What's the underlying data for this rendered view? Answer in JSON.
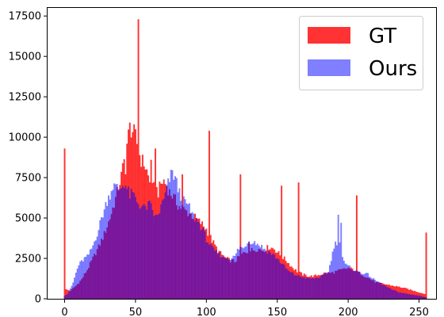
{
  "chart_data": {
    "type": "bar",
    "title": "",
    "xlabel": "",
    "ylabel": "",
    "xlim": [
      -12,
      262
    ],
    "ylim": [
      0,
      18000
    ],
    "x_ticks": [
      0,
      50,
      100,
      150,
      200,
      250
    ],
    "y_ticks": [
      0,
      2500,
      5000,
      7500,
      10000,
      12500,
      15000,
      17500
    ],
    "x_tick_labels": [
      "0",
      "50",
      "100",
      "150",
      "200",
      "250"
    ],
    "y_tick_labels": [
      "0",
      "2500",
      "5000",
      "7500",
      "10000",
      "12500",
      "15000",
      "17500"
    ],
    "grid": false,
    "legend_position": "top-right",
    "series": [
      {
        "name": "GT",
        "color": "#ff0000",
        "opacity": 0.8,
        "knots": [
          [
            0,
            600
          ],
          [
            4,
            500
          ],
          [
            8,
            800
          ],
          [
            12,
            1200
          ],
          [
            16,
            1800
          ],
          [
            20,
            2500
          ],
          [
            24,
            3200
          ],
          [
            28,
            4000
          ],
          [
            32,
            5000
          ],
          [
            36,
            6200
          ],
          [
            40,
            7600
          ],
          [
            42,
            8500
          ],
          [
            44,
            9600
          ],
          [
            46,
            10600
          ],
          [
            48,
            10400
          ],
          [
            50,
            10000
          ],
          [
            52,
            9200
          ],
          [
            54,
            8600
          ],
          [
            56,
            8400
          ],
          [
            58,
            7900
          ],
          [
            60,
            7200
          ],
          [
            62,
            6800
          ],
          [
            64,
            6900
          ],
          [
            66,
            6600
          ],
          [
            68,
            7100
          ],
          [
            70,
            7300
          ],
          [
            72,
            7000
          ],
          [
            74,
            6600
          ],
          [
            76,
            6400
          ],
          [
            78,
            6100
          ],
          [
            80,
            5800
          ],
          [
            84,
            5500
          ],
          [
            88,
            5300
          ],
          [
            92,
            5000
          ],
          [
            96,
            4700
          ],
          [
            100,
            4300
          ],
          [
            104,
            3600
          ],
          [
            108,
            3000
          ],
          [
            112,
            2600
          ],
          [
            116,
            2400
          ],
          [
            120,
            2300
          ],
          [
            124,
            2700
          ],
          [
            128,
            2900
          ],
          [
            132,
            3000
          ],
          [
            136,
            3100
          ],
          [
            140,
            3000
          ],
          [
            144,
            3200
          ],
          [
            148,
            3100
          ],
          [
            152,
            2700
          ],
          [
            156,
            2400
          ],
          [
            160,
            2000
          ],
          [
            164,
            1700
          ],
          [
            168,
            1500
          ],
          [
            172,
            1400
          ],
          [
            176,
            1400
          ],
          [
            180,
            1500
          ],
          [
            184,
            1600
          ],
          [
            188,
            1600
          ],
          [
            192,
            1700
          ],
          [
            196,
            1800
          ],
          [
            200,
            1900
          ],
          [
            204,
            1800
          ],
          [
            208,
            1600
          ],
          [
            212,
            1400
          ],
          [
            216,
            1200
          ],
          [
            220,
            1000
          ],
          [
            226,
            900
          ],
          [
            232,
            800
          ],
          [
            238,
            700
          ],
          [
            244,
            550
          ],
          [
            250,
            400
          ],
          [
            254,
            300
          ]
        ],
        "spikes": [
          [
            0,
            9300
          ],
          [
            43,
            7700
          ],
          [
            52,
            17300
          ],
          [
            61,
            8600
          ],
          [
            64,
            9300
          ],
          [
            83,
            7700
          ],
          [
            102,
            10400
          ],
          [
            124,
            7700
          ],
          [
            130,
            3500
          ],
          [
            153,
            7000
          ],
          [
            165,
            7200
          ],
          [
            206,
            6400
          ],
          [
            255,
            4100
          ]
        ],
        "dips": [
          [
            43,
            0.55
          ],
          [
            64,
            0.55
          ],
          [
            83,
            0.45
          ],
          [
            124,
            0.38
          ],
          [
            165,
            0.3
          ],
          [
            206,
            0.45
          ],
          [
            255,
            0.5
          ]
        ]
      },
      {
        "name": "Ours",
        "color": "#0000ff",
        "opacity": 0.5,
        "knots": [
          [
            0,
            200
          ],
          [
            2,
            300
          ],
          [
            4,
            600
          ],
          [
            6,
            1000
          ],
          [
            8,
            1600
          ],
          [
            10,
            2100
          ],
          [
            12,
            2300
          ],
          [
            14,
            2500
          ],
          [
            16,
            2600
          ],
          [
            18,
            2900
          ],
          [
            20,
            3300
          ],
          [
            22,
            3800
          ],
          [
            24,
            4300
          ],
          [
            26,
            5000
          ],
          [
            28,
            5500
          ],
          [
            30,
            6100
          ],
          [
            32,
            6500
          ],
          [
            34,
            7000
          ],
          [
            36,
            6900
          ],
          [
            38,
            6800
          ],
          [
            40,
            6900
          ],
          [
            42,
            7200
          ],
          [
            44,
            6800
          ],
          [
            46,
            6400
          ],
          [
            48,
            6500
          ],
          [
            50,
            6200
          ],
          [
            52,
            5900
          ],
          [
            56,
            5600
          ],
          [
            60,
            5800
          ],
          [
            62,
            5500
          ],
          [
            64,
            5000
          ],
          [
            66,
            5200
          ],
          [
            68,
            5700
          ],
          [
            70,
            6100
          ],
          [
            72,
            6800
          ],
          [
            74,
            7400
          ],
          [
            76,
            7800
          ],
          [
            78,
            7500
          ],
          [
            80,
            6800
          ],
          [
            82,
            6300
          ],
          [
            84,
            6000
          ],
          [
            86,
            5900
          ],
          [
            88,
            5600
          ],
          [
            90,
            5200
          ],
          [
            94,
            4800
          ],
          [
            98,
            4200
          ],
          [
            100,
            3700
          ],
          [
            104,
            3100
          ],
          [
            108,
            2800
          ],
          [
            112,
            2600
          ],
          [
            116,
            2500
          ],
          [
            120,
            2600
          ],
          [
            122,
            3000
          ],
          [
            124,
            3200
          ],
          [
            126,
            3100
          ],
          [
            128,
            3400
          ],
          [
            130,
            3600
          ],
          [
            134,
            3500
          ],
          [
            138,
            3300
          ],
          [
            142,
            3000
          ],
          [
            146,
            2800
          ],
          [
            150,
            2500
          ],
          [
            154,
            2100
          ],
          [
            158,
            1700
          ],
          [
            162,
            1500
          ],
          [
            166,
            1400
          ],
          [
            170,
            1300
          ],
          [
            174,
            1250
          ],
          [
            178,
            1300
          ],
          [
            182,
            1400
          ],
          [
            186,
            1700
          ],
          [
            188,
            2400
          ],
          [
            190,
            3300
          ],
          [
            192,
            3500
          ],
          [
            194,
            3700
          ],
          [
            196,
            2600
          ],
          [
            198,
            2100
          ],
          [
            202,
            1900
          ],
          [
            206,
            1700
          ],
          [
            210,
            1600
          ],
          [
            214,
            1500
          ],
          [
            218,
            1200
          ],
          [
            222,
            1000
          ],
          [
            226,
            800
          ],
          [
            230,
            600
          ],
          [
            236,
            400
          ],
          [
            242,
            300
          ],
          [
            250,
            200
          ],
          [
            254,
            100
          ]
        ],
        "spikes": [
          [
            193,
            5200
          ],
          [
            195,
            4700
          ]
        ],
        "dips": []
      }
    ]
  }
}
